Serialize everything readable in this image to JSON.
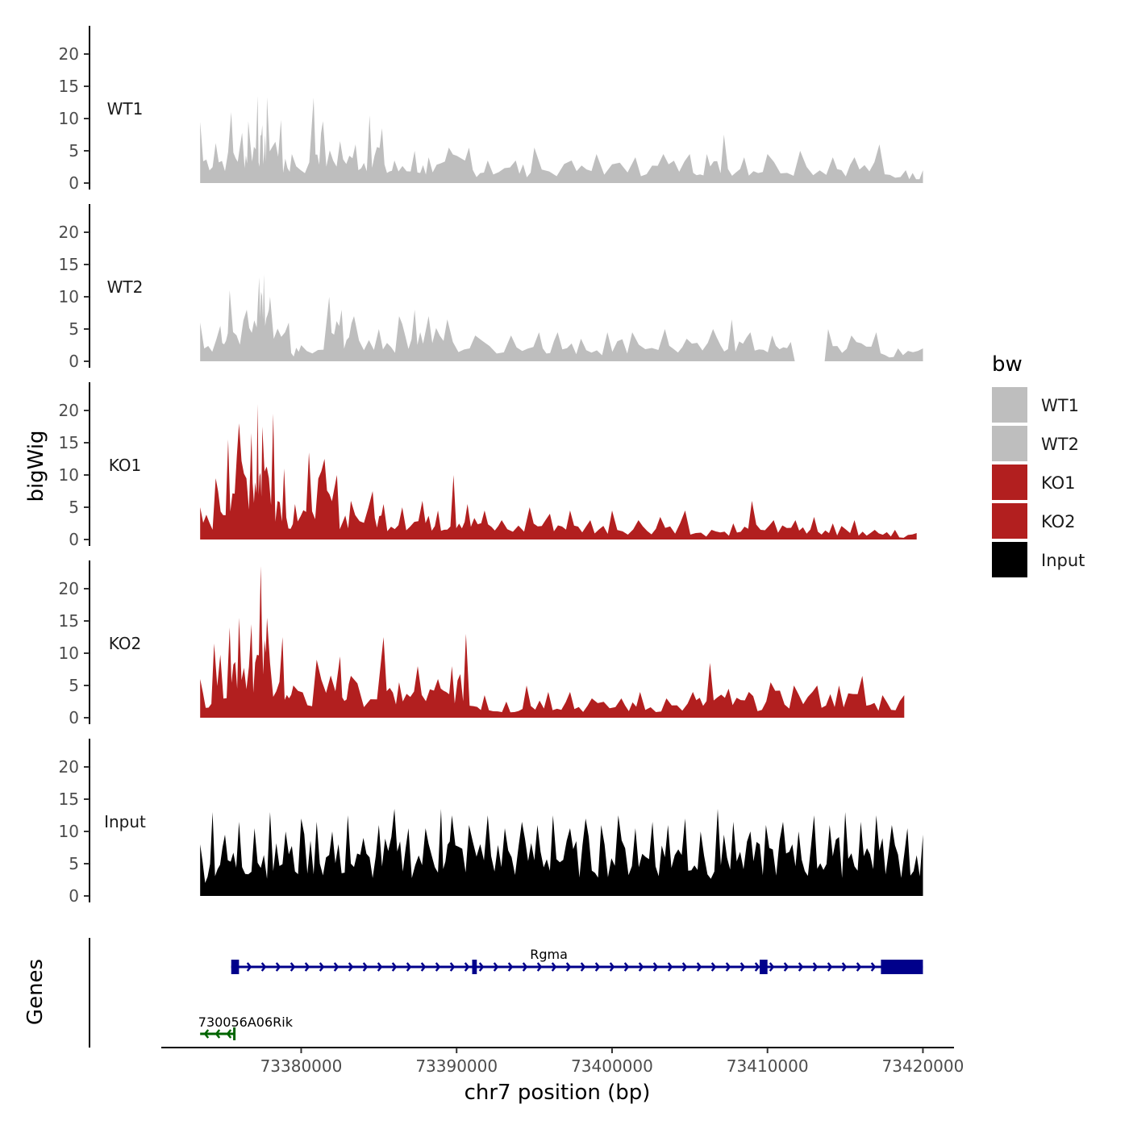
{
  "chart_data": {
    "type": "area",
    "title": "",
    "xlabel": "chr7 position (bp)",
    "ylabel": "bigWig",
    "genes_label": "Genes",
    "xlim": [
      73371000,
      73422000
    ],
    "x_ticks": [
      {
        "value": 73380000,
        "label": "73380000"
      },
      {
        "value": 73390000,
        "label": "73390000"
      },
      {
        "value": 73400000,
        "label": "73400000"
      },
      {
        "value": 73410000,
        "label": "73410000"
      },
      {
        "value": 73420000,
        "label": "73420000"
      }
    ],
    "ylim": [
      0,
      25
    ],
    "y_ticks": [
      {
        "value": 0,
        "label": "0"
      },
      {
        "value": 5,
        "label": "5"
      },
      {
        "value": 10,
        "label": "10"
      },
      {
        "value": 15,
        "label": "15"
      },
      {
        "value": 20,
        "label": "20"
      }
    ],
    "region": [
      73373500,
      73420000
    ],
    "legend": {
      "title": "bw",
      "entries": [
        {
          "label": "WT1",
          "color": "#bebebe"
        },
        {
          "label": "WT2",
          "color": "#bebebe"
        },
        {
          "label": "KO1",
          "color": "#b21f1f"
        },
        {
          "label": "KO2",
          "color": "#b21f1f"
        },
        {
          "label": "Input",
          "color": "#000000"
        }
      ]
    },
    "series": [
      {
        "name": "WT1",
        "color": "#bebebe",
        "peak_positions": [
          73373500,
          73374500,
          73375500,
          73376200,
          73376600,
          73377200,
          73377500,
          73377800,
          73378700,
          73379400,
          73380800,
          73381400,
          73382500,
          73383500,
          73384400,
          73385200,
          73386000,
          73387300,
          73388200,
          73389500,
          73390800,
          73392000,
          73393800,
          73395000,
          73397400,
          73399000,
          73401500,
          73403300,
          73405000,
          73406100,
          73407200,
          73408500,
          73410000,
          73412100,
          73414200,
          73415600,
          73417200,
          73418900,
          73420000
        ],
        "peak_values": [
          9.5,
          6.2,
          11.0,
          7.8,
          9.6,
          13.5,
          9.0,
          13.3,
          9.8,
          4.5,
          13.2,
          9.6,
          6.5,
          6.0,
          10.5,
          8.5,
          3.5,
          5.0,
          4.0,
          5.5,
          5.5,
          3.5,
          3.5,
          5.5,
          3.5,
          4.5,
          4.0,
          4.5,
          4.5,
          4.5,
          7.5,
          4.0,
          4.5,
          5.0,
          4.0,
          4.0,
          6.0,
          2.0,
          2.0
        ]
      },
      {
        "name": "WT2",
        "color": "#bebebe",
        "peak_positions": [
          73373500,
          73374800,
          73375400,
          73376500,
          73377300,
          73377600,
          73378000,
          73379200,
          73380000,
          73381800,
          73382600,
          73383400,
          73385000,
          73386300,
          73387300,
          73388200,
          73389400,
          73391200,
          73393500,
          73395300,
          73396500,
          73398000,
          73399700,
          73401300,
          73403400,
          73404800,
          73406500,
          73407700,
          73408900,
          73410300,
          73411500,
          73412800,
          73413900,
          73415400,
          73417000,
          73418400,
          73420000
        ],
        "peak_values": [
          6.0,
          5.5,
          11.0,
          8.0,
          13.0,
          13.5,
          10.0,
          6.0,
          2.5,
          10.0,
          8.0,
          7.0,
          5.0,
          7.0,
          8.0,
          7.0,
          6.5,
          4.0,
          4.0,
          4.5,
          4.5,
          3.5,
          4.5,
          4.5,
          5.0,
          3.5,
          5.0,
          6.5,
          4.5,
          4.0,
          3.0,
          0.0,
          5.0,
          4.0,
          4.5,
          2.0,
          2.0
        ]
      },
      {
        "name": "KO1",
        "color": "#b21f1f",
        "peak_positions": [
          73373500,
          73374500,
          73375300,
          73376000,
          73376800,
          73377200,
          73377500,
          73378200,
          73378900,
          73379600,
          73380500,
          73381500,
          73382300,
          73383200,
          73384600,
          73385300,
          73386500,
          73387800,
          73388800,
          73389800,
          73390700,
          73391800,
          73392900,
          73394700,
          73396000,
          73397300,
          73398600,
          73400000,
          73401700,
          73403100,
          73404700,
          73406400,
          73407800,
          73409000,
          73410400,
          73411800,
          73413000,
          73414200,
          73415600,
          73416900,
          73418200,
          73419600
        ],
        "peak_values": [
          5.0,
          9.5,
          15.5,
          18.0,
          16.5,
          21.0,
          17.5,
          19.5,
          11.0,
          5.5,
          13.5,
          12.5,
          10.0,
          6.0,
          7.5,
          5.5,
          5.0,
          6.0,
          4.5,
          10.0,
          5.5,
          4.5,
          3.0,
          5.0,
          4.0,
          4.5,
          3.0,
          4.5,
          3.0,
          3.5,
          4.5,
          1.5,
          2.5,
          6.0,
          3.0,
          3.0,
          3.5,
          2.5,
          3.0,
          1.5,
          1.5,
          1.0
        ]
      },
      {
        "name": "KO2",
        "color": "#b21f1f",
        "peak_positions": [
          73373500,
          73374400,
          73375400,
          73376000,
          73376800,
          73377400,
          73377800,
          73378800,
          73379500,
          73381000,
          73382500,
          73383200,
          73385300,
          73386300,
          73387500,
          73388800,
          73389700,
          73390600,
          73391800,
          73393200,
          73394500,
          73395900,
          73397300,
          73398700,
          73400600,
          73401800,
          73403500,
          73405200,
          73406300,
          73407500,
          73408800,
          73410200,
          73411700,
          73413200,
          73414600,
          73416100,
          73417400,
          73418800
        ],
        "peak_values": [
          6.0,
          11.5,
          14.0,
          15.5,
          14.5,
          23.5,
          15.5,
          12.5,
          5.0,
          9.0,
          9.5,
          6.5,
          12.5,
          5.5,
          8.0,
          6.0,
          8.0,
          13.0,
          3.5,
          2.5,
          5.0,
          4.0,
          4.0,
          3.0,
          3.0,
          4.0,
          3.0,
          4.0,
          8.5,
          4.5,
          4.0,
          5.5,
          5.0,
          5.0,
          5.0,
          6.5,
          3.5,
          3.5
        ]
      },
      {
        "name": "Input",
        "color": "#000000",
        "peak_positions": [
          73373500,
          73374300,
          73375100,
          73376000,
          73377000,
          73378000,
          73379000,
          73380000,
          73381000,
          73382000,
          73383000,
          73384000,
          73385000,
          73386000,
          73386900,
          73388000,
          73389000,
          73389700,
          73390800,
          73392000,
          73393100,
          73394200,
          73395200,
          73396200,
          73397300,
          73398300,
          73399300,
          73400400,
          73401500,
          73402600,
          73403600,
          73404700,
          73405700,
          73406800,
          73407800,
          73408900,
          73409900,
          73411000,
          73412000,
          73413000,
          73414000,
          73415000,
          73416000,
          73417000,
          73418000,
          73419000,
          73420000
        ],
        "peak_values": [
          8.0,
          13.0,
          9.5,
          11.5,
          10.5,
          13.0,
          10.0,
          12.0,
          11.5,
          10.0,
          12.5,
          9.0,
          11.0,
          13.5,
          10.5,
          10.5,
          13.5,
          12.5,
          11.0,
          12.5,
          10.5,
          11.5,
          11.0,
          12.5,
          10.5,
          12.0,
          11.0,
          12.5,
          10.5,
          11.5,
          11.0,
          12.0,
          10.0,
          13.5,
          11.5,
          10.0,
          11.0,
          11.5,
          10.0,
          12.5,
          11.0,
          13.0,
          11.5,
          12.5,
          11.0,
          10.5,
          9.5
        ]
      }
    ],
    "genes": [
      {
        "name": "Rgma",
        "strand": "+",
        "color": "#00008b",
        "start": 73375500,
        "end": 73420000,
        "exons": [
          [
            73375500,
            73376000
          ],
          [
            73391000,
            73391300
          ],
          [
            73409500,
            73410000
          ],
          [
            73417300,
            73420000
          ]
        ]
      },
      {
        "name": "730056A06Rik",
        "strand": "-",
        "color": "#006400",
        "start": 73373500,
        "end": 73375700,
        "exons": []
      }
    ]
  }
}
